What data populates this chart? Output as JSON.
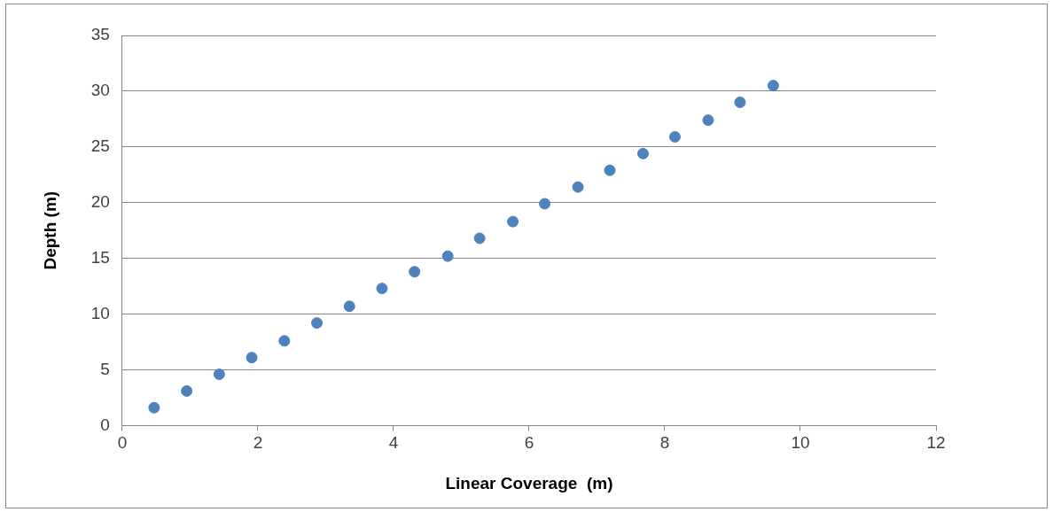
{
  "chart_data": {
    "type": "scatter",
    "xlabel": "Linear Coverage  (m)",
    "ylabel": "Depth (m)",
    "x": [
      0.47,
      0.95,
      1.43,
      1.91,
      2.39,
      2.87,
      3.35,
      3.83,
      4.31,
      4.8,
      5.27,
      5.76,
      6.23,
      6.72,
      7.19,
      7.68,
      8.15,
      8.64,
      9.11,
      9.6
    ],
    "values": [
      1.6,
      3.1,
      4.6,
      6.1,
      7.6,
      9.2,
      10.7,
      12.3,
      13.8,
      15.2,
      16.8,
      18.3,
      19.9,
      21.4,
      22.9,
      24.4,
      25.9,
      27.4,
      29.0,
      30.5
    ],
    "color": "#4f81bd",
    "marker": "circle",
    "grid": "y",
    "xlim": [
      0,
      12
    ],
    "xticks": [
      0,
      2,
      4,
      6,
      8,
      10,
      12
    ],
    "ylim": [
      0,
      35
    ],
    "yticks": [
      0,
      5,
      10,
      15,
      20,
      25,
      30,
      35
    ]
  }
}
